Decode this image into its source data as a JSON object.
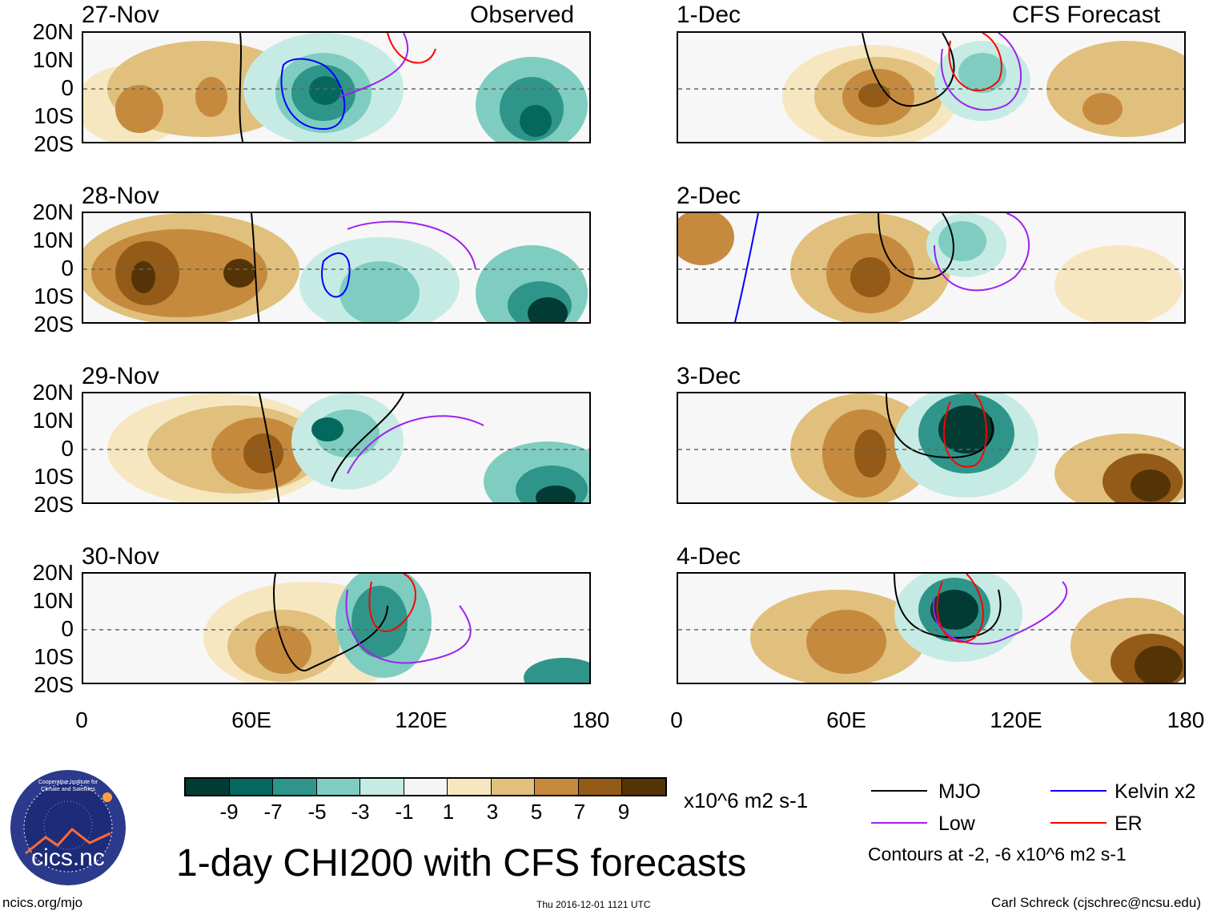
{
  "title": "1-day CHI200 with CFS forecasts",
  "headers": {
    "observed": "Observed",
    "forecast": "CFS Forecast"
  },
  "lat_labels": [
    "20N",
    "10N",
    "0",
    "10S",
    "20S"
  ],
  "lon_labels": [
    "0",
    "60E",
    "120E",
    "180"
  ],
  "panels": [
    {
      "date": "27-Nov",
      "type": "observed"
    },
    {
      "date": "28-Nov",
      "type": "observed"
    },
    {
      "date": "29-Nov",
      "type": "observed"
    },
    {
      "date": "30-Nov",
      "type": "observed"
    },
    {
      "date": "1-Dec",
      "type": "forecast"
    },
    {
      "date": "2-Dec",
      "type": "forecast"
    },
    {
      "date": "3-Dec",
      "type": "forecast"
    },
    {
      "date": "4-Dec",
      "type": "forecast"
    }
  ],
  "colorbar": {
    "ticks": [
      "-9",
      "-7",
      "-5",
      "-3",
      "-1",
      "1",
      "3",
      "5",
      "7",
      "9"
    ],
    "colors": [
      "#013b33",
      "#05685e",
      "#2f958a",
      "#7fcdc0",
      "#c6ebe4",
      "#f5f5f5",
      "#f6e7c0",
      "#e0c07c",
      "#c68a3e",
      "#935b17",
      "#543406"
    ],
    "units": "x10^6 m2 s-1"
  },
  "legend": {
    "items": [
      {
        "label": "MJO",
        "color": "#000000"
      },
      {
        "label": "Kelvin x2",
        "color": "#0000ff"
      },
      {
        "label": "Low",
        "color": "#a020f0"
      },
      {
        "label": "ER",
        "color": "#ff0000"
      }
    ],
    "note": "Contours at -2, -6 x10^6 m2 s-1"
  },
  "logo": {
    "text": "cics.nc",
    "ring_text": "Cooperative Institute for Climate and Satellites"
  },
  "footer": {
    "url": "ncics.org/mjo",
    "timestamp": "Thu 2016-12-01 1121 UTC",
    "credit": "Carl Schreck (cjschrec@ncsu.edu)"
  }
}
